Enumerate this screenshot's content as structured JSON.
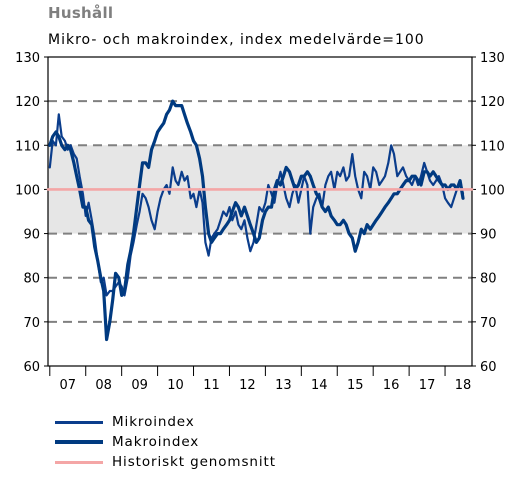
{
  "chart_data": {
    "type": "line",
    "title": "Hushåll",
    "subtitle": "Mikro- och makroindex, index medelvärde=100",
    "x_tick_labels": [
      "07",
      "08",
      "09",
      "10",
      "11",
      "12",
      "13",
      "14",
      "15",
      "16",
      "17",
      "18"
    ],
    "x_range_years": [
      2006.95,
      2018.75
    ],
    "ylim": [
      60,
      130
    ],
    "y_ticks": [
      60,
      70,
      80,
      90,
      100,
      110,
      120,
      130
    ],
    "y_ticks_both_sides": true,
    "dashed_gridlines": [
      70,
      80,
      90,
      110,
      120
    ],
    "shaded_band": [
      90,
      110
    ],
    "shaded_band_color": "#e6e6e6",
    "legend_position": "bottom-left",
    "series": [
      {
        "name": "Mikroindex",
        "color": "#0b3d8c",
        "points": [
          [
            2007.0,
            105
          ],
          [
            2007.08,
            111
          ],
          [
            2007.17,
            110
          ],
          [
            2007.25,
            117
          ],
          [
            2007.33,
            112
          ],
          [
            2007.42,
            111
          ],
          [
            2007.5,
            109
          ],
          [
            2007.58,
            110
          ],
          [
            2007.67,
            108
          ],
          [
            2007.75,
            107
          ],
          [
            2007.83,
            103
          ],
          [
            2007.92,
            99
          ],
          [
            2008.0,
            94
          ],
          [
            2008.08,
            97
          ],
          [
            2008.17,
            93
          ],
          [
            2008.25,
            89
          ],
          [
            2008.33,
            84
          ],
          [
            2008.42,
            79
          ],
          [
            2008.5,
            80
          ],
          [
            2008.58,
            76
          ],
          [
            2008.67,
            77
          ],
          [
            2008.75,
            77
          ],
          [
            2008.83,
            78
          ],
          [
            2008.92,
            79
          ],
          [
            2009.0,
            78
          ],
          [
            2009.08,
            76
          ],
          [
            2009.17,
            80
          ],
          [
            2009.25,
            85
          ],
          [
            2009.33,
            88
          ],
          [
            2009.42,
            92
          ],
          [
            2009.5,
            95
          ],
          [
            2009.58,
            99
          ],
          [
            2009.67,
            98
          ],
          [
            2009.75,
            96
          ],
          [
            2009.83,
            93
          ],
          [
            2009.92,
            91
          ],
          [
            2010.0,
            95
          ],
          [
            2010.08,
            98
          ],
          [
            2010.17,
            100
          ],
          [
            2010.25,
            101
          ],
          [
            2010.33,
            99
          ],
          [
            2010.42,
            105
          ],
          [
            2010.5,
            102
          ],
          [
            2010.58,
            101
          ],
          [
            2010.67,
            104
          ],
          [
            2010.75,
            102
          ],
          [
            2010.83,
            103
          ],
          [
            2010.92,
            98
          ],
          [
            2011.0,
            99
          ],
          [
            2011.08,
            96
          ],
          [
            2011.17,
            100
          ],
          [
            2011.25,
            97
          ],
          [
            2011.33,
            88
          ],
          [
            2011.42,
            85
          ],
          [
            2011.5,
            89
          ],
          [
            2011.58,
            90
          ],
          [
            2011.67,
            91
          ],
          [
            2011.75,
            93
          ],
          [
            2011.83,
            95
          ],
          [
            2011.92,
            94
          ],
          [
            2012.0,
            96
          ],
          [
            2012.08,
            93
          ],
          [
            2012.17,
            95
          ],
          [
            2012.25,
            92
          ],
          [
            2012.33,
            91
          ],
          [
            2012.42,
            93
          ],
          [
            2012.5,
            89
          ],
          [
            2012.58,
            86
          ],
          [
            2012.67,
            88
          ],
          [
            2012.75,
            92
          ],
          [
            2012.83,
            96
          ],
          [
            2012.92,
            95
          ],
          [
            2013.0,
            97
          ],
          [
            2013.08,
            101
          ],
          [
            2013.17,
            99
          ],
          [
            2013.25,
            97
          ],
          [
            2013.33,
            101
          ],
          [
            2013.42,
            104
          ],
          [
            2013.5,
            101
          ],
          [
            2013.58,
            98
          ],
          [
            2013.67,
            96
          ],
          [
            2013.75,
            99
          ],
          [
            2013.83,
            101
          ],
          [
            2013.92,
            97
          ],
          [
            2014.0,
            100
          ],
          [
            2014.08,
            103
          ],
          [
            2014.17,
            101
          ],
          [
            2014.25,
            90
          ],
          [
            2014.33,
            96
          ],
          [
            2014.42,
            98
          ],
          [
            2014.5,
            99
          ],
          [
            2014.58,
            96
          ],
          [
            2014.67,
            101
          ],
          [
            2014.75,
            103
          ],
          [
            2014.83,
            104
          ],
          [
            2014.92,
            100
          ],
          [
            2015.0,
            104
          ],
          [
            2015.08,
            103
          ],
          [
            2015.17,
            105
          ],
          [
            2015.25,
            102
          ],
          [
            2015.33,
            103
          ],
          [
            2015.42,
            108
          ],
          [
            2015.5,
            103
          ],
          [
            2015.58,
            100
          ],
          [
            2015.67,
            98
          ],
          [
            2015.75,
            104
          ],
          [
            2015.83,
            103
          ],
          [
            2015.92,
            100
          ],
          [
            2016.0,
            105
          ],
          [
            2016.08,
            104
          ],
          [
            2016.17,
            101
          ],
          [
            2016.25,
            102
          ],
          [
            2016.33,
            103
          ],
          [
            2016.42,
            106
          ],
          [
            2016.5,
            110
          ],
          [
            2016.58,
            108
          ],
          [
            2016.67,
            103
          ],
          [
            2016.75,
            104
          ],
          [
            2016.83,
            105
          ],
          [
            2016.92,
            103
          ],
          [
            2017.0,
            102
          ],
          [
            2017.08,
            101
          ],
          [
            2017.17,
            103
          ],
          [
            2017.25,
            101
          ],
          [
            2017.33,
            103
          ],
          [
            2017.42,
            106
          ],
          [
            2017.5,
            104
          ],
          [
            2017.58,
            102
          ],
          [
            2017.67,
            101
          ],
          [
            2017.75,
            102
          ],
          [
            2017.83,
            103
          ],
          [
            2017.92,
            101
          ],
          [
            2018.0,
            98
          ],
          [
            2018.08,
            97
          ],
          [
            2018.17,
            96
          ],
          [
            2018.25,
            98
          ],
          [
            2018.33,
            100
          ],
          [
            2018.42,
            102
          ],
          [
            2018.5,
            99
          ]
        ]
      },
      {
        "name": "Makroindex",
        "color": "#003a80",
        "points": [
          [
            2007.0,
            110
          ],
          [
            2007.08,
            112
          ],
          [
            2007.17,
            113
          ],
          [
            2007.25,
            112
          ],
          [
            2007.33,
            110
          ],
          [
            2007.42,
            109
          ],
          [
            2007.5,
            110
          ],
          [
            2007.58,
            109
          ],
          [
            2007.67,
            106
          ],
          [
            2007.75,
            103
          ],
          [
            2007.83,
            100
          ],
          [
            2007.92,
            96
          ],
          [
            2008.0,
            96
          ],
          [
            2008.08,
            93
          ],
          [
            2008.17,
            92
          ],
          [
            2008.25,
            87
          ],
          [
            2008.33,
            84
          ],
          [
            2008.42,
            80
          ],
          [
            2008.5,
            77
          ],
          [
            2008.58,
            66
          ],
          [
            2008.67,
            70
          ],
          [
            2008.75,
            75
          ],
          [
            2008.83,
            81
          ],
          [
            2008.92,
            80
          ],
          [
            2009.0,
            76
          ],
          [
            2009.08,
            77
          ],
          [
            2009.17,
            83
          ],
          [
            2009.25,
            86
          ],
          [
            2009.33,
            90
          ],
          [
            2009.42,
            96
          ],
          [
            2009.5,
            101
          ],
          [
            2009.58,
            106
          ],
          [
            2009.67,
            106
          ],
          [
            2009.75,
            105
          ],
          [
            2009.83,
            109
          ],
          [
            2009.92,
            111
          ],
          [
            2010.0,
            113
          ],
          [
            2010.08,
            114
          ],
          [
            2010.17,
            115
          ],
          [
            2010.25,
            117
          ],
          [
            2010.33,
            118
          ],
          [
            2010.42,
            120
          ],
          [
            2010.5,
            119
          ],
          [
            2010.58,
            119
          ],
          [
            2010.67,
            119
          ],
          [
            2010.75,
            117
          ],
          [
            2010.83,
            115
          ],
          [
            2010.92,
            113
          ],
          [
            2011.0,
            111
          ],
          [
            2011.08,
            110
          ],
          [
            2011.17,
            107
          ],
          [
            2011.25,
            103
          ],
          [
            2011.33,
            96
          ],
          [
            2011.42,
            90
          ],
          [
            2011.5,
            88
          ],
          [
            2011.58,
            89
          ],
          [
            2011.67,
            90
          ],
          [
            2011.75,
            90
          ],
          [
            2011.83,
            91
          ],
          [
            2011.92,
            92
          ],
          [
            2012.0,
            93
          ],
          [
            2012.08,
            95
          ],
          [
            2012.17,
            97
          ],
          [
            2012.25,
            96
          ],
          [
            2012.33,
            94
          ],
          [
            2012.42,
            96
          ],
          [
            2012.5,
            94
          ],
          [
            2012.58,
            92
          ],
          [
            2012.67,
            90
          ],
          [
            2012.75,
            88
          ],
          [
            2012.83,
            89
          ],
          [
            2012.92,
            93
          ],
          [
            2013.0,
            95
          ],
          [
            2013.08,
            96
          ],
          [
            2013.17,
            96
          ],
          [
            2013.25,
            100
          ],
          [
            2013.33,
            102
          ],
          [
            2013.42,
            101
          ],
          [
            2013.5,
            103
          ],
          [
            2013.58,
            105
          ],
          [
            2013.67,
            104
          ],
          [
            2013.75,
            102
          ],
          [
            2013.83,
            100
          ],
          [
            2013.92,
            101
          ],
          [
            2014.0,
            103
          ],
          [
            2014.08,
            103
          ],
          [
            2014.17,
            104
          ],
          [
            2014.25,
            103
          ],
          [
            2014.33,
            101
          ],
          [
            2014.42,
            99
          ],
          [
            2014.5,
            98
          ],
          [
            2014.58,
            96
          ],
          [
            2014.67,
            95
          ],
          [
            2014.75,
            96
          ],
          [
            2014.83,
            94
          ],
          [
            2014.92,
            93
          ],
          [
            2015.0,
            92
          ],
          [
            2015.08,
            92
          ],
          [
            2015.17,
            93
          ],
          [
            2015.25,
            92
          ],
          [
            2015.33,
            90
          ],
          [
            2015.42,
            89
          ],
          [
            2015.5,
            86
          ],
          [
            2015.58,
            88
          ],
          [
            2015.67,
            91
          ],
          [
            2015.75,
            90
          ],
          [
            2015.83,
            92
          ],
          [
            2015.92,
            91
          ],
          [
            2016.0,
            92
          ],
          [
            2016.08,
            93
          ],
          [
            2016.17,
            94
          ],
          [
            2016.25,
            95
          ],
          [
            2016.33,
            96
          ],
          [
            2016.42,
            97
          ],
          [
            2016.5,
            98
          ],
          [
            2016.58,
            99
          ],
          [
            2016.67,
            99
          ],
          [
            2016.75,
            100
          ],
          [
            2016.83,
            101
          ],
          [
            2016.92,
            102
          ],
          [
            2017.0,
            102
          ],
          [
            2017.08,
            103
          ],
          [
            2017.17,
            103
          ],
          [
            2017.25,
            102
          ],
          [
            2017.33,
            101
          ],
          [
            2017.42,
            104
          ],
          [
            2017.5,
            104
          ],
          [
            2017.58,
            103
          ],
          [
            2017.67,
            104
          ],
          [
            2017.75,
            103
          ],
          [
            2017.83,
            102
          ],
          [
            2017.92,
            101
          ],
          [
            2018.0,
            101
          ],
          [
            2018.08,
            100
          ],
          [
            2018.17,
            101
          ],
          [
            2018.25,
            101
          ],
          [
            2018.33,
            100
          ],
          [
            2018.42,
            102
          ],
          [
            2018.5,
            98
          ]
        ]
      },
      {
        "name": "Historiskt genomsnitt",
        "color": "#f4a6a6",
        "points": [
          [
            2006.95,
            100
          ],
          [
            2018.75,
            100
          ]
        ]
      }
    ]
  }
}
